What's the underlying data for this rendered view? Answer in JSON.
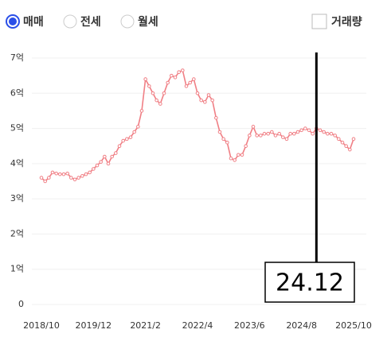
{
  "controls": {
    "radios": [
      {
        "label": "매매",
        "selected": true
      },
      {
        "label": "전세",
        "selected": false
      },
      {
        "label": "월세",
        "selected": false
      }
    ],
    "checkbox": {
      "label": "거래량",
      "checked": false
    }
  },
  "chart_data": {
    "type": "line",
    "x": [
      "2018/10",
      "2018/11",
      "2018/12",
      "2019/1",
      "2019/2",
      "2019/3",
      "2019/4",
      "2019/5",
      "2019/6",
      "2019/7",
      "2019/8",
      "2019/9",
      "2019/10",
      "2019/11",
      "2019/12",
      "2020/1",
      "2020/2",
      "2020/3",
      "2020/4",
      "2020/5",
      "2020/6",
      "2020/7",
      "2020/8",
      "2020/9",
      "2020/10",
      "2020/11",
      "2020/12",
      "2021/1",
      "2021/2",
      "2021/3",
      "2021/4",
      "2021/5",
      "2021/6",
      "2021/7",
      "2021/8",
      "2021/9",
      "2021/10",
      "2021/11",
      "2021/12",
      "2022/1",
      "2022/2",
      "2022/3",
      "2022/4",
      "2022/5",
      "2022/6",
      "2022/7",
      "2022/8",
      "2022/9",
      "2022/10",
      "2022/11",
      "2022/12",
      "2023/1",
      "2023/2",
      "2023/3",
      "2023/4",
      "2023/5",
      "2023/6",
      "2023/7",
      "2023/8",
      "2023/9",
      "2023/10",
      "2023/11",
      "2023/12",
      "2024/1",
      "2024/2",
      "2024/3",
      "2024/4",
      "2024/5",
      "2024/6",
      "2024/7",
      "2024/8",
      "2024/9",
      "2024/10",
      "2024/11",
      "2024/12",
      "2025/1",
      "2025/2",
      "2025/3",
      "2025/4",
      "2025/5",
      "2025/6",
      "2025/7",
      "2025/8",
      "2025/9",
      "2025/10"
    ],
    "series": [
      {
        "color": "#f07f85",
        "values": [
          3.6,
          3.5,
          3.6,
          3.75,
          3.72,
          3.7,
          3.7,
          3.72,
          3.6,
          3.55,
          3.6,
          3.65,
          3.7,
          3.75,
          3.85,
          3.95,
          4.05,
          4.2,
          4.0,
          4.2,
          4.3,
          4.5,
          4.65,
          4.7,
          4.75,
          4.9,
          5.05,
          5.5,
          6.4,
          6.2,
          6.0,
          5.8,
          5.7,
          6.0,
          6.3,
          6.5,
          6.45,
          6.6,
          6.65,
          6.2,
          6.3,
          6.4,
          6.0,
          5.8,
          5.75,
          5.95,
          5.8,
          5.3,
          4.9,
          4.7,
          4.6,
          4.15,
          4.1,
          4.25,
          4.25,
          4.5,
          4.8,
          5.05,
          4.8,
          4.8,
          4.85,
          4.85,
          4.9,
          4.8,
          4.85,
          4.75,
          4.7,
          4.85,
          4.85,
          4.9,
          4.95,
          5.0,
          4.95,
          4.85,
          5.0,
          4.95,
          4.9,
          4.85,
          4.85,
          4.8,
          4.7,
          4.6,
          4.5,
          4.4,
          4.7
        ]
      }
    ],
    "xlim": [
      "2018/10",
      "2025/10"
    ],
    "xticks": [
      "2018/10",
      "2019/12",
      "2021/2",
      "2022/4",
      "2023/6",
      "2024/8",
      "2025/10"
    ],
    "ylim": [
      0,
      7
    ],
    "yticks": [
      0,
      {
        "value": 1,
        "label": "1억"
      },
      {
        "value": 2,
        "label": "2억"
      },
      {
        "value": 3,
        "label": "3억"
      },
      {
        "value": 4,
        "label": "4억"
      },
      {
        "value": 5,
        "label": "5억"
      },
      {
        "value": 6,
        "label": "6억"
      },
      {
        "value": 7,
        "label": "7억"
      }
    ],
    "grid": true,
    "annotation": {
      "text": "24.12",
      "x": "2024/12"
    }
  }
}
